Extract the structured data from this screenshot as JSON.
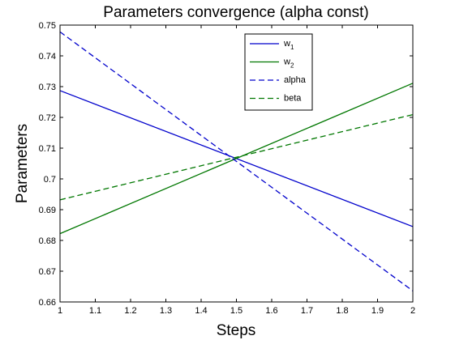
{
  "chart_data": {
    "type": "line",
    "title": "Parameters convergence (alpha const)",
    "xlabel": "Steps",
    "ylabel": "Parameters",
    "xlim": [
      1,
      2
    ],
    "ylim": [
      0.66,
      0.75
    ],
    "xticks": [
      1,
      1.1,
      1.2,
      1.3,
      1.4,
      1.5,
      1.6,
      1.7,
      1.8,
      1.9,
      2
    ],
    "xtick_labels": [
      "1",
      "1.1",
      "1.2",
      "1.3",
      "1.4",
      "1.5",
      "1.6",
      "1.7",
      "1.8",
      "1.9",
      "2"
    ],
    "yticks": [
      0.66,
      0.67,
      0.68,
      0.69,
      0.7,
      0.71,
      0.72,
      0.73,
      0.74,
      0.75
    ],
    "ytick_labels": [
      "0.66",
      "0.67",
      "0.68",
      "0.69",
      "0.7",
      "0.71",
      "0.72",
      "0.73",
      "0.74",
      "0.75"
    ],
    "grid": false,
    "legend_position": "top-right",
    "series": [
      {
        "name": "w",
        "subscript": "1",
        "color": "#0000cc",
        "style": "solid",
        "x": [
          1,
          2
        ],
        "y": [
          0.7287,
          0.6845
        ]
      },
      {
        "name": "w",
        "subscript": "2",
        "color": "#007700",
        "style": "solid",
        "x": [
          1,
          2
        ],
        "y": [
          0.6822,
          0.7311
        ]
      },
      {
        "name": "alpha",
        "color": "#0000cc",
        "style": "dashed",
        "x": [
          1,
          2
        ],
        "y": [
          0.7478,
          0.6636
        ]
      },
      {
        "name": "beta",
        "color": "#007700",
        "style": "dashed",
        "x": [
          1,
          2
        ],
        "y": [
          0.6932,
          0.7209
        ]
      }
    ]
  }
}
